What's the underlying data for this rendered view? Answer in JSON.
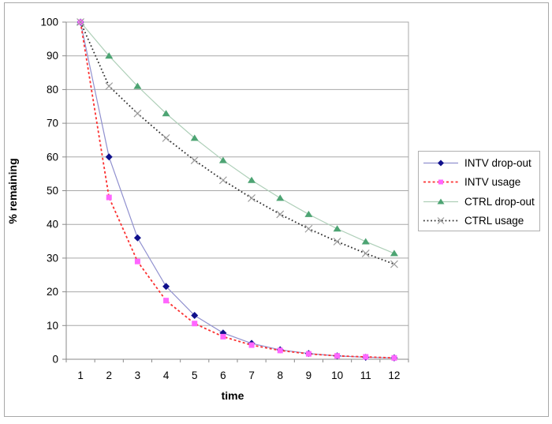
{
  "window": {
    "background": "#ffffff",
    "frame_border_color": "#a8a8a8"
  },
  "chart_data": {
    "type": "line",
    "title": "",
    "xlabel": "time",
    "ylabel": "% remaining",
    "categories": [
      1,
      2,
      3,
      4,
      5,
      6,
      7,
      8,
      9,
      10,
      11,
      12
    ],
    "ylim": [
      0,
      100
    ],
    "yticks": [
      0,
      10,
      20,
      30,
      40,
      50,
      60,
      70,
      80,
      90,
      100
    ],
    "grid": true,
    "legend_position": "right",
    "grid_color": "#a8a8a8",
    "axis_color": "#8a8a8a",
    "series": [
      {
        "name": "INTV drop-out",
        "values": [
          100,
          60,
          36,
          21.6,
          13,
          7.8,
          4.7,
          2.8,
          1.7,
          1.0,
          0.6,
          0.4
        ],
        "line_color": "#9090cf",
        "line_style": "solid",
        "marker": "diamond",
        "marker_color": "#10108c"
      },
      {
        "name": "INTV usage",
        "values": [
          100,
          48,
          29,
          17.4,
          10.6,
          6.7,
          4.2,
          2.6,
          1.6,
          1.0,
          0.7,
          0.4
        ],
        "line_color": "#fb3131",
        "line_style": "dashed",
        "marker": "square",
        "marker_color": "#ff66ff"
      },
      {
        "name": "CTRL drop-out",
        "values": [
          100,
          90,
          81,
          72.9,
          65.6,
          59.0,
          53.1,
          47.8,
          43.0,
          38.7,
          34.9,
          31.4
        ],
        "line_color": "#aecfb8",
        "line_style": "solid",
        "marker": "triangle",
        "marker_color": "#4da473"
      },
      {
        "name": "CTRL usage",
        "values": [
          100,
          81,
          72.9,
          65.6,
          59.0,
          53.1,
          47.8,
          43.0,
          38.7,
          34.9,
          31.4,
          28.2
        ],
        "line_color": "#2e2e2e",
        "line_style": "dotted",
        "marker": "x",
        "marker_color": "#9b9b9b"
      }
    ],
    "draw_order": [
      0,
      2,
      1,
      3
    ]
  },
  "legend": {
    "border_color": "#b0b0b0",
    "background": "#ffffff"
  }
}
